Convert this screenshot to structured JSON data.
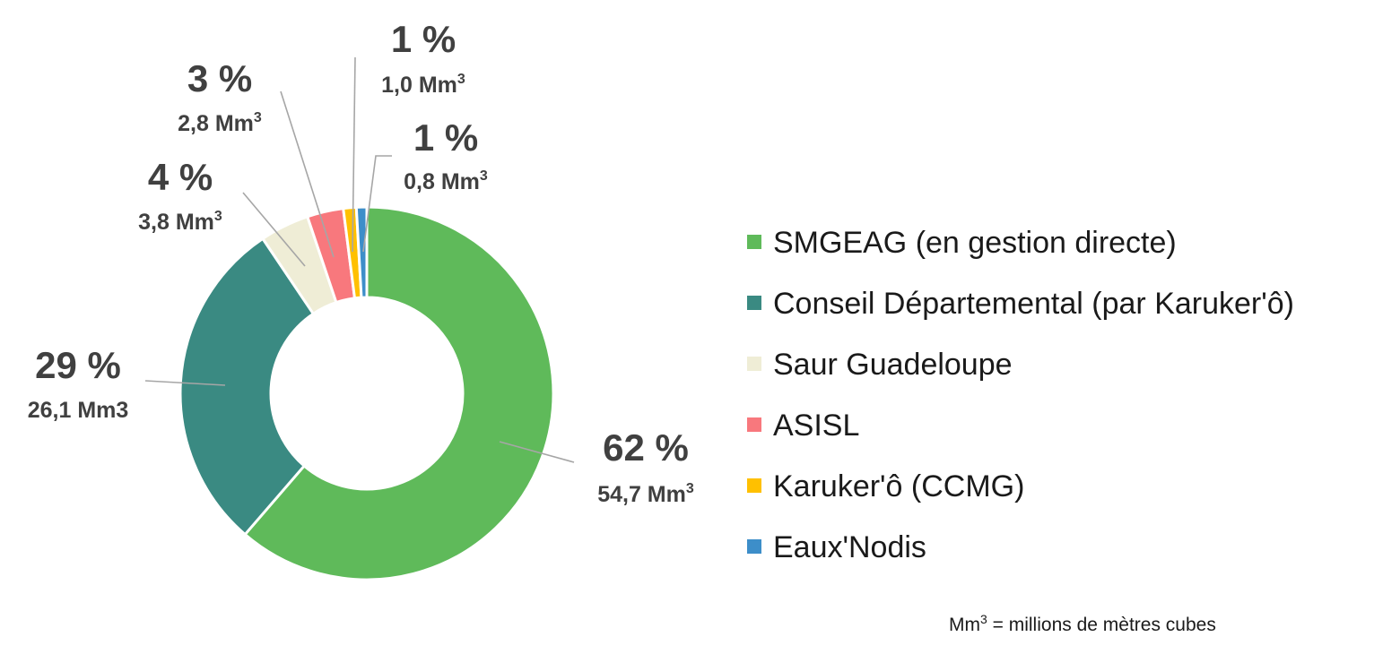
{
  "chart_data": {
    "type": "pie",
    "donut": true,
    "title": "",
    "slices": [
      {
        "name": "SMGEAG (en gestion directe)",
        "value": 54.7,
        "percent_label": "62 %",
        "volume_main": "54,7 Mm",
        "volume_sup": "3",
        "color": "#5fba5a"
      },
      {
        "name": "Conseil Départemental (par Karuker'ô)",
        "value": 26.1,
        "percent_label": "29 %",
        "volume_main": "26,1 Mm3",
        "volume_sup": "",
        "color": "#3a8a82"
      },
      {
        "name": "Saur Guadeloupe",
        "value": 3.8,
        "percent_label": "4 %",
        "volume_main": "3,8 Mm",
        "volume_sup": "3",
        "color": "#efedd6"
      },
      {
        "name": "ASISL",
        "value": 2.8,
        "percent_label": "3 %",
        "volume_main": "2,8 Mm",
        "volume_sup": "3",
        "color": "#f8787d"
      },
      {
        "name": "Karuker'ô (CCMG)",
        "value": 1.0,
        "percent_label": "1 %",
        "volume_main": "1,0 Mm",
        "volume_sup": "3",
        "color": "#ffc000"
      },
      {
        "name": "Eaux'Nodis",
        "value": 0.8,
        "percent_label": "1 %",
        "volume_main": "0,8 Mm",
        "volume_sup": "3",
        "color": "#3d8ec9"
      }
    ],
    "legend_position": "right",
    "footnote": {
      "main": "Mm",
      "sup": "3",
      "rest": " = millions de mètres cubes"
    }
  }
}
